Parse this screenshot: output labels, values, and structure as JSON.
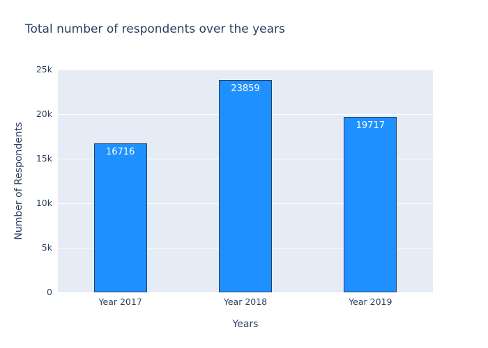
{
  "chart_data": {
    "type": "bar",
    "title": "Total number of respondents over the years",
    "xlabel": "Years",
    "ylabel": "Number of Respondents",
    "categories": [
      "Year 2017",
      "Year 2018",
      "Year 2019"
    ],
    "values": [
      16716,
      23859,
      19717
    ],
    "bar_labels": [
      "16716",
      "23859",
      "19717"
    ],
    "ylim": [
      0,
      25000
    ],
    "yticks": [
      0,
      5000,
      10000,
      15000,
      20000,
      25000
    ],
    "ytick_labels": [
      "0",
      "5k",
      "10k",
      "15k",
      "20k",
      "25k"
    ],
    "grid": true,
    "legend": "none",
    "colors": {
      "bar_fill": "#1e90ff",
      "bar_border": "#2a3f5f",
      "plot_bg": "#e5ecf6",
      "grid": "#ffffff",
      "text": "#2a3f5f",
      "bar_label_text": "#ffffff"
    }
  }
}
